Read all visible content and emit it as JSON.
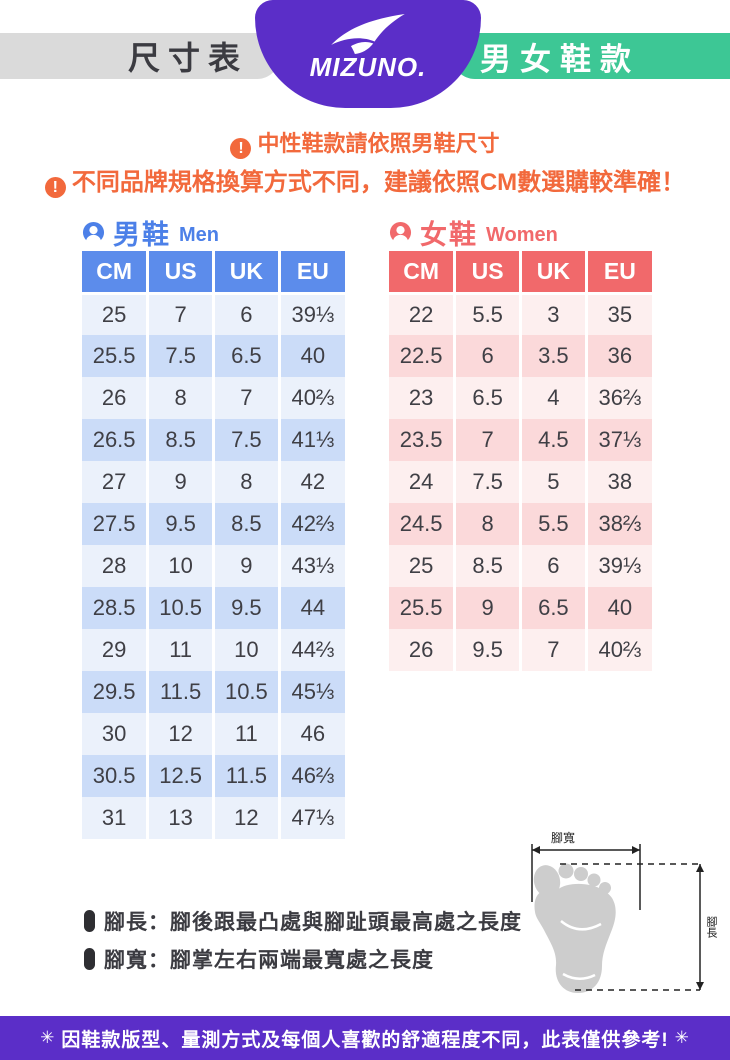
{
  "header": {
    "size_chart_label": "尺寸表",
    "brand_wordmark": "MIZUNO.",
    "category_label": "男女鞋款"
  },
  "notices": [
    {
      "icon": "!",
      "text": "中性鞋款請依照男鞋尺寸"
    },
    {
      "icon": "!",
      "text": "不同品牌規格換算方式不同，建議依照CM數選購較準確！"
    }
  ],
  "tables": {
    "men": {
      "title_zh": "男鞋",
      "title_en": "Men",
      "columns": [
        "CM",
        "US",
        "UK",
        "EU"
      ],
      "rows": [
        [
          "25",
          "7",
          "6",
          "39⅓"
        ],
        [
          "25.5",
          "7.5",
          "6.5",
          "40"
        ],
        [
          "26",
          "8",
          "7",
          "40⅔"
        ],
        [
          "26.5",
          "8.5",
          "7.5",
          "41⅓"
        ],
        [
          "27",
          "9",
          "8",
          "42"
        ],
        [
          "27.5",
          "9.5",
          "8.5",
          "42⅔"
        ],
        [
          "28",
          "10",
          "9",
          "43⅓"
        ],
        [
          "28.5",
          "10.5",
          "9.5",
          "44"
        ],
        [
          "29",
          "11",
          "10",
          "44⅔"
        ],
        [
          "29.5",
          "11.5",
          "10.5",
          "45⅓"
        ],
        [
          "30",
          "12",
          "11",
          "46"
        ],
        [
          "30.5",
          "12.5",
          "11.5",
          "46⅔"
        ],
        [
          "31",
          "13",
          "12",
          "47⅓"
        ]
      ]
    },
    "women": {
      "title_zh": "女鞋",
      "title_en": "Women",
      "columns": [
        "CM",
        "US",
        "UK",
        "EU"
      ],
      "rows": [
        [
          "22",
          "5.5",
          "3",
          "35"
        ],
        [
          "22.5",
          "6",
          "3.5",
          "36"
        ],
        [
          "23",
          "6.5",
          "4",
          "36⅔"
        ],
        [
          "23.5",
          "7",
          "4.5",
          "37⅓"
        ],
        [
          "24",
          "7.5",
          "5",
          "38"
        ],
        [
          "24.5",
          "8",
          "5.5",
          "38⅔"
        ],
        [
          "25",
          "8.5",
          "6",
          "39⅓"
        ],
        [
          "25.5",
          "9",
          "6.5",
          "40"
        ],
        [
          "26",
          "9.5",
          "7",
          "40⅔"
        ]
      ]
    }
  },
  "measurement_notes": [
    {
      "text": "腳長：腳後跟最凸處與腳趾頭最高處之長度"
    },
    {
      "text": "腳寬：腳掌左右兩端最寬處之長度"
    }
  ],
  "foot_diagram": {
    "width_label": "腳寬",
    "length_label": "腳長"
  },
  "footer": {
    "star": "✳",
    "text": "因鞋款版型、量測方式及每個人喜歡的舒適程度不同，此表僅供參考!"
  },
  "colors": {
    "purple": "#5B2EC8",
    "teal_green": "#3DC795",
    "gray_pill": "#DADADA",
    "notice_orange": "#F2693C",
    "men_header_blue": "#5C8CEB",
    "men_title_blue": "#4C80E8",
    "men_row_light": "#EBF1FB",
    "men_row_dark": "#CBDCF8",
    "women_header_red": "#F1696B",
    "women_row_light": "#FDEFEF",
    "women_row_dark": "#FBD9DA",
    "text_dark": "#3B3B41"
  }
}
